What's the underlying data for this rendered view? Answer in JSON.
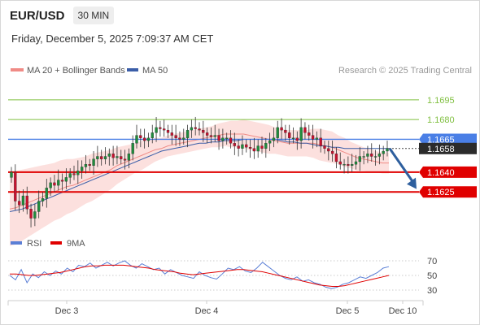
{
  "header": {
    "symbol": "EUR/USD",
    "timeframe": "30 MIN",
    "timestamp": "Friday, December 5, 2025 7:09:37 AM CET"
  },
  "legend": {
    "ma20_label": "MA 20 + Bollinger Bands",
    "ma50_label": "MA 50",
    "credit": "Research © 2025 Trading Central",
    "rsi_label": "RSI",
    "rsi_ma_label": "9MA"
  },
  "colors": {
    "ma20": "#f08b86",
    "bollinger_fill": "#fbd5d3",
    "ma50": "#3b5ea8",
    "candle_up": "#1e8c3c",
    "candle_down": "#c8102e",
    "level_green": "#7fbf3f",
    "level_blue": "#4a7fe6",
    "level_red": "#e00000",
    "current": "#2b2b2b",
    "arrow": "#2e5f9e",
    "rsi": "#5b7fd6",
    "rsi_ma": "#e00000"
  },
  "chart_data": [
    {
      "type": "candlestick",
      "title": "EUR/USD",
      "ylim": [
        1.1593,
        1.1711
      ],
      "y_ticks": [
        "1.1695",
        "1.1680",
        "1.1665",
        "1.1658",
        "1.1640",
        "1.1625"
      ],
      "levels": [
        {
          "value": 1.1695,
          "label": "1.1695",
          "style": "green-line"
        },
        {
          "value": 1.168,
          "label": "1.1680",
          "style": "green-line"
        },
        {
          "value": 1.1665,
          "label": "1.1665",
          "style": "blue-line"
        },
        {
          "value": 1.164,
          "label": "1.1640",
          "style": "red-line"
        },
        {
          "value": 1.1625,
          "label": "1.1625",
          "style": "red-line"
        }
      ],
      "current_price": {
        "value": 1.1658,
        "label": "1.1658"
      },
      "projection": {
        "from": 1.1658,
        "to": 1.1626,
        "direction": "down"
      },
      "x_ticks": [
        "Dec 3",
        "Dec 4",
        "Dec 5",
        "Dec 10"
      ],
      "closes": [
        1.164,
        1.1618,
        1.1615,
        1.1622,
        1.1612,
        1.1605,
        1.161,
        1.1618,
        1.162,
        1.1628,
        1.1632,
        1.163,
        1.1634,
        1.1633,
        1.1636,
        1.1639,
        1.1638,
        1.1641,
        1.1644,
        1.1646,
        1.1645,
        1.165,
        1.1652,
        1.165,
        1.1652,
        1.1654,
        1.1651,
        1.1652,
        1.165,
        1.1649,
        1.1654,
        1.1662,
        1.1668,
        1.1666,
        1.1664,
        1.1666,
        1.167,
        1.1674,
        1.1673,
        1.1672,
        1.167,
        1.1668,
        1.1666,
        1.1665,
        1.1666,
        1.1672,
        1.1674,
        1.1673,
        1.1672,
        1.167,
        1.1668,
        1.1667,
        1.1668,
        1.1664,
        1.1666,
        1.1666,
        1.1662,
        1.166,
        1.1658,
        1.1661,
        1.1659,
        1.1658,
        1.1656,
        1.166,
        1.1658,
        1.1662,
        1.1664,
        1.1666,
        1.1674,
        1.1672,
        1.167,
        1.1666,
        1.1666,
        1.1664,
        1.1674,
        1.167,
        1.1668,
        1.1665,
        1.1666,
        1.166,
        1.1658,
        1.1656,
        1.1654,
        1.1648,
        1.1646,
        1.1646,
        1.1645,
        1.1646,
        1.1648,
        1.1652,
        1.1652,
        1.1654,
        1.1652,
        1.1652,
        1.1654,
        1.1656,
        1.1658
      ],
      "ma20": [
        1.1612,
        1.1613,
        1.1615,
        1.1617,
        1.1619,
        1.1621,
        1.1623,
        1.1625,
        1.1627,
        1.1629,
        1.163,
        1.1632,
        1.1634,
        1.1636,
        1.1638,
        1.164,
        1.1642,
        1.1645,
        1.1647,
        1.1649,
        1.1651,
        1.1653,
        1.1655,
        1.1657,
        1.1658,
        1.166,
        1.1661,
        1.1662,
        1.1663,
        1.1664,
        1.1665,
        1.1666,
        1.1667,
        1.1668,
        1.1669,
        1.1669,
        1.1669,
        1.1669,
        1.1668,
        1.1667,
        1.1666,
        1.1665,
        1.1664,
        1.1663,
        1.1662,
        1.1662,
        1.1662,
        1.1662,
        1.1662,
        1.1661,
        1.166,
        1.1659,
        1.1657,
        1.1655,
        1.1653,
        1.1651,
        1.165,
        1.1649,
        1.1648,
        1.1647,
        1.1647
      ],
      "ma20_band_halfwidth": [
        0.0028,
        0.0028,
        0.0027,
        0.0026,
        0.0025,
        0.0024,
        0.0023,
        0.0022,
        0.0022,
        0.0021,
        0.002,
        0.0019,
        0.0018,
        0.0018,
        0.0017,
        0.0016,
        0.0015,
        0.0014,
        0.0013,
        0.0012,
        0.0011,
        0.0011,
        0.001,
        0.0009,
        0.0008,
        0.0008,
        0.0008,
        0.0008,
        0.0008,
        0.0008,
        0.0008,
        0.0008,
        0.0008,
        0.0009,
        0.0009,
        0.001,
        0.001,
        0.0011,
        0.0011,
        0.0011,
        0.0011,
        0.0011,
        0.001,
        0.001,
        0.001,
        0.001,
        0.001,
        0.001,
        0.0011,
        0.0012,
        0.0012,
        0.0012,
        0.0011,
        0.0011,
        0.001,
        0.001,
        0.0009,
        0.0009,
        0.0008,
        0.0008,
        0.0008
      ],
      "ma50": [
        1.161,
        1.1611,
        1.1612,
        1.1614,
        1.1616,
        1.1618,
        1.162,
        1.1622,
        1.1624,
        1.1626,
        1.1628,
        1.163,
        1.1632,
        1.1634,
        1.1636,
        1.1638,
        1.164,
        1.1642,
        1.1644,
        1.1646,
        1.1648,
        1.165,
        1.1652,
        1.1654,
        1.1656,
        1.1657,
        1.1658,
        1.1659,
        1.166,
        1.1661,
        1.1662,
        1.1662,
        1.1663,
        1.1663,
        1.1664,
        1.1664,
        1.1664,
        1.1665,
        1.1665,
        1.1665,
        1.1665,
        1.1665,
        1.1665,
        1.1664,
        1.1663,
        1.1663,
        1.1662,
        1.1662,
        1.1661,
        1.166,
        1.166,
        1.1659,
        1.1659,
        1.1658,
        1.1658,
        1.1658,
        1.1658,
        1.1658,
        1.1658,
        1.1658,
        1.1658
      ]
    },
    {
      "type": "line",
      "title": "RSI",
      "ylim": [
        20,
        80
      ],
      "y_ticks": [
        "70",
        "50",
        "30"
      ],
      "series": [
        {
          "name": "RSI",
          "values": [
            50,
            44,
            58,
            40,
            52,
            47,
            55,
            50,
            56,
            52,
            60,
            55,
            64,
            62,
            67,
            60,
            64,
            68,
            63,
            67,
            70,
            64,
            60,
            66,
            62,
            58,
            60,
            52,
            58,
            54,
            50,
            48,
            46,
            55,
            50,
            47,
            45,
            52,
            60,
            58,
            62,
            56,
            54,
            60,
            68,
            62,
            56,
            50,
            46,
            44,
            48,
            42,
            44,
            40,
            38,
            34,
            32,
            34,
            38,
            40,
            44,
            48,
            46,
            50,
            54,
            60,
            62
          ]
        },
        {
          "name": "9MA",
          "values": [
            52,
            52,
            51,
            50,
            50,
            51,
            52,
            53,
            54,
            56,
            58,
            60,
            62,
            63,
            63,
            64,
            64,
            64,
            64,
            63,
            62,
            61,
            60,
            58,
            57,
            56,
            55,
            53,
            52,
            51,
            52,
            53,
            54,
            55,
            56,
            57,
            58,
            58,
            57,
            56,
            55,
            53,
            51,
            49,
            47,
            45,
            43,
            41,
            39,
            37,
            36,
            35,
            35,
            36,
            38,
            40,
            42,
            44,
            46,
            48,
            50
          ]
        }
      ]
    }
  ]
}
